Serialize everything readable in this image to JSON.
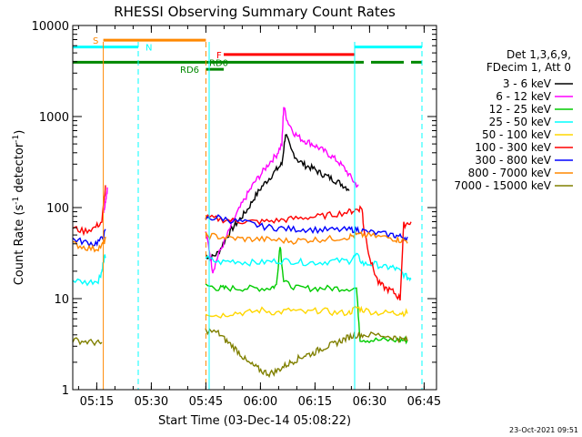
{
  "chart_data": {
    "type": "line",
    "title": "RHESSI Observing Summary Count Rates",
    "xlabel": "Start Time (03-Dec-14 05:08:22)",
    "ylabel_main": "Count Rate (s",
    "ylabel_sup1": "-1",
    "ylabel_mid": " detector",
    "ylabel_sup2": "-1",
    "ylabel_end": ")",
    "footer": "23-Oct-2021 09:51",
    "x_minutes": [
      0,
      100
    ],
    "ylim": [
      1,
      10000
    ],
    "y_scale": "log",
    "x_ticks": [
      {
        "label": "05:15",
        "m": 6.6
      },
      {
        "label": "05:30",
        "m": 21.6
      },
      {
        "label": "05:45",
        "m": 36.6
      },
      {
        "label": "06:00",
        "m": 51.6
      },
      {
        "label": "06:15",
        "m": 66.6
      },
      {
        "label": "06:30",
        "m": 81.6
      },
      {
        "label": "06:45",
        "m": 96.6
      }
    ],
    "y_ticks": [
      {
        "label": "1",
        "v": 1
      },
      {
        "label": "10",
        "v": 10
      },
      {
        "label": "100",
        "v": 100
      },
      {
        "label": "1000",
        "v": 1000
      },
      {
        "label": "10000",
        "v": 10000
      }
    ],
    "legend_header": [
      "Det 1,3,6,9,",
      "FDecim 1, Att 0"
    ],
    "series": [
      {
        "name": "3 - 6 keV",
        "color": "#000000",
        "points": [
          [
            36.5,
            30
          ],
          [
            38,
            28
          ],
          [
            40,
            32
          ],
          [
            42,
            45
          ],
          [
            44,
            60
          ],
          [
            46,
            75
          ],
          [
            48,
            95
          ],
          [
            50,
            130
          ],
          [
            52,
            170
          ],
          [
            54,
            210
          ],
          [
            56,
            260
          ],
          [
            57.5,
            300
          ],
          [
            58.5,
            650
          ],
          [
            60,
            430
          ],
          [
            62,
            330
          ],
          [
            64,
            290
          ],
          [
            66,
            270
          ],
          [
            68,
            240
          ],
          [
            70,
            220
          ],
          [
            72,
            200
          ],
          [
            74,
            180
          ],
          [
            76,
            160
          ]
        ]
      },
      {
        "name": "6 - 12 keV",
        "color": "#ff00ff",
        "points": [
          [
            8.5,
            90
          ],
          [
            9,
            120
          ],
          [
            9.5,
            160
          ],
          [
            36.5,
            55
          ],
          [
            37.5,
            35
          ],
          [
            38.5,
            20
          ],
          [
            40,
            30
          ],
          [
            42,
            45
          ],
          [
            44,
            70
          ],
          [
            46,
            100
          ],
          [
            48,
            140
          ],
          [
            50,
            190
          ],
          [
            52,
            240
          ],
          [
            54,
            310
          ],
          [
            56,
            380
          ],
          [
            57.5,
            500
          ],
          [
            58,
            1300
          ],
          [
            59,
            900
          ],
          [
            61,
            650
          ],
          [
            63,
            560
          ],
          [
            65,
            520
          ],
          [
            67,
            470
          ],
          [
            69,
            420
          ],
          [
            71,
            370
          ],
          [
            73,
            320
          ],
          [
            75,
            260
          ],
          [
            77,
            200
          ],
          [
            78.5,
            170
          ]
        ]
      },
      {
        "name": "12 - 25 keV",
        "color": "#00cc00",
        "points": [
          [
            36.5,
            14
          ],
          [
            40,
            13
          ],
          [
            42,
            13
          ],
          [
            46,
            13
          ],
          [
            50,
            13
          ],
          [
            54,
            13
          ],
          [
            56,
            14
          ],
          [
            57,
            40
          ],
          [
            58,
            15
          ],
          [
            62,
            13
          ],
          [
            66,
            13
          ],
          [
            70,
            13
          ],
          [
            74,
            13
          ],
          [
            78,
            13
          ],
          [
            79,
            3.6
          ],
          [
            82,
            3.5
          ],
          [
            86,
            3.5
          ],
          [
            90,
            3.5
          ],
          [
            92,
            3.5
          ]
        ]
      },
      {
        "name": "25 - 50 keV",
        "color": "#00ffff",
        "points": [
          [
            0,
            16
          ],
          [
            4,
            15
          ],
          [
            7,
            16
          ],
          [
            8,
            20
          ],
          [
            8.5,
            26
          ],
          [
            9,
            30
          ],
          [
            36.5,
            28
          ],
          [
            40,
            25
          ],
          [
            44,
            26
          ],
          [
            48,
            25
          ],
          [
            52,
            25
          ],
          [
            56,
            26
          ],
          [
            60,
            26
          ],
          [
            64,
            25
          ],
          [
            68,
            25
          ],
          [
            72,
            26
          ],
          [
            76,
            26
          ],
          [
            78,
            30
          ],
          [
            80,
            24
          ],
          [
            83,
            24
          ],
          [
            86,
            22
          ],
          [
            88,
            22
          ],
          [
            90,
            20
          ],
          [
            92,
            17
          ],
          [
            93,
            17
          ]
        ]
      },
      {
        "name": "50 - 100 keV",
        "color": "#ffd700",
        "points": [
          [
            36.5,
            7
          ],
          [
            40,
            6.5
          ],
          [
            44,
            7
          ],
          [
            48,
            7
          ],
          [
            52,
            7.5
          ],
          [
            56,
            7
          ],
          [
            60,
            7.5
          ],
          [
            64,
            7
          ],
          [
            68,
            7.5
          ],
          [
            72,
            7
          ],
          [
            76,
            7
          ],
          [
            78,
            8
          ],
          [
            80,
            7.5
          ],
          [
            84,
            7
          ],
          [
            88,
            7
          ],
          [
            90,
            7
          ],
          [
            92,
            7
          ]
        ]
      },
      {
        "name": "100 - 300 keV",
        "color": "#ff0000",
        "points": [
          [
            0,
            60
          ],
          [
            3,
            55
          ],
          [
            6,
            60
          ],
          [
            8,
            70
          ],
          [
            9,
            170
          ],
          [
            36.5,
            78
          ],
          [
            40,
            75
          ],
          [
            44,
            72
          ],
          [
            48,
            70
          ],
          [
            52,
            70
          ],
          [
            56,
            72
          ],
          [
            60,
            75
          ],
          [
            64,
            78
          ],
          [
            68,
            80
          ],
          [
            72,
            85
          ],
          [
            76,
            90
          ],
          [
            78,
            95
          ],
          [
            79.5,
            100
          ],
          [
            80,
            60
          ],
          [
            82,
            25
          ],
          [
            84,
            15
          ],
          [
            86,
            13
          ],
          [
            88,
            12
          ],
          [
            90,
            10
          ],
          [
            91,
            65
          ],
          [
            93,
            70
          ]
        ]
      },
      {
        "name": "300 - 800 keV",
        "color": "#0000ff",
        "points": [
          [
            0,
            45
          ],
          [
            3,
            42
          ],
          [
            6,
            40
          ],
          [
            8,
            45
          ],
          [
            9,
            55
          ],
          [
            36.5,
            75
          ],
          [
            40,
            78
          ],
          [
            44,
            72
          ],
          [
            48,
            68
          ],
          [
            52,
            62
          ],
          [
            56,
            60
          ],
          [
            60,
            58
          ],
          [
            64,
            58
          ],
          [
            68,
            57
          ],
          [
            72,
            57
          ],
          [
            76,
            57
          ],
          [
            78,
            58
          ],
          [
            80,
            55
          ],
          [
            84,
            52
          ],
          [
            88,
            50
          ],
          [
            90,
            48
          ],
          [
            92,
            47
          ]
        ]
      },
      {
        "name": "800 - 7000 keV",
        "color": "#ff8800",
        "points": [
          [
            0,
            40
          ],
          [
            3,
            37
          ],
          [
            6,
            35
          ],
          [
            8,
            38
          ],
          [
            9,
            45
          ],
          [
            36.5,
            50
          ],
          [
            40,
            48
          ],
          [
            44,
            46
          ],
          [
            48,
            45
          ],
          [
            52,
            45
          ],
          [
            56,
            44
          ],
          [
            60,
            43
          ],
          [
            64,
            44
          ],
          [
            68,
            45
          ],
          [
            72,
            46
          ],
          [
            76,
            48
          ],
          [
            78,
            50
          ],
          [
            80,
            50
          ],
          [
            84,
            48
          ],
          [
            88,
            46
          ],
          [
            90,
            44
          ],
          [
            92,
            43
          ]
        ]
      },
      {
        "name": "7000 - 15000 keV",
        "color": "#808000",
        "points": [
          [
            0,
            3.5
          ],
          [
            3,
            3.4
          ],
          [
            6,
            3.3
          ],
          [
            8,
            3.2
          ],
          [
            36.5,
            4.5
          ],
          [
            40,
            4.2
          ],
          [
            42,
            3.5
          ],
          [
            44,
            3
          ],
          [
            46,
            2.5
          ],
          [
            48,
            2
          ],
          [
            50,
            1.8
          ],
          [
            52,
            1.6
          ],
          [
            54,
            1.5
          ],
          [
            56,
            1.6
          ],
          [
            58,
            1.8
          ],
          [
            60,
            2
          ],
          [
            62,
            2.2
          ],
          [
            64,
            2.4
          ],
          [
            66,
            2.5
          ],
          [
            68,
            2.8
          ],
          [
            70,
            3
          ],
          [
            72,
            3.2
          ],
          [
            74,
            3.5
          ],
          [
            76,
            3.8
          ],
          [
            78,
            4
          ],
          [
            80,
            4
          ],
          [
            84,
            4
          ],
          [
            88,
            3.8
          ],
          [
            90,
            3.6
          ],
          [
            92,
            3.5
          ]
        ]
      }
    ],
    "state_bars": [
      {
        "label": "S",
        "color": "#ff8800",
        "y": 6900,
        "segments": [
          [
            8.4,
            36.6
          ]
        ],
        "label_m": 5.5
      },
      {
        "label": "N",
        "color": "#00ffff",
        "y": 5800,
        "segments": [
          [
            0,
            18
          ],
          [
            77.5,
            96
          ]
        ],
        "label_m": 20
      },
      {
        "label": "F",
        "color": "#ff0000",
        "y": 4800,
        "segments": [
          [
            41.5,
            77.5
          ]
        ],
        "label_m": 39.5
      },
      {
        "label": "RD0",
        "color": "#008800",
        "y": 3950,
        "segments": [
          [
            0,
            36.6
          ],
          [
            36.6,
            80
          ],
          [
            82,
            91
          ],
          [
            93,
            96
          ]
        ],
        "label_m": 37.5
      },
      {
        "label": "RD6",
        "color": "#008800",
        "y": 3300,
        "segments": [
          [
            36.6,
            41.5
          ]
        ],
        "label_m": 29.5
      }
    ],
    "markers": [
      {
        "m": 8.4,
        "color": "#ff8800",
        "style": "solid"
      },
      {
        "m": 18,
        "color": "#00ffff",
        "style": "dashed"
      },
      {
        "m": 36.6,
        "color": "#ff8800",
        "style": "dashed"
      },
      {
        "m": 37.5,
        "color": "#00ffff",
        "style": "solid"
      },
      {
        "m": 77.5,
        "color": "#00ffff",
        "style": "solid"
      },
      {
        "m": 96,
        "color": "#00ffff",
        "style": "dashed"
      }
    ]
  }
}
